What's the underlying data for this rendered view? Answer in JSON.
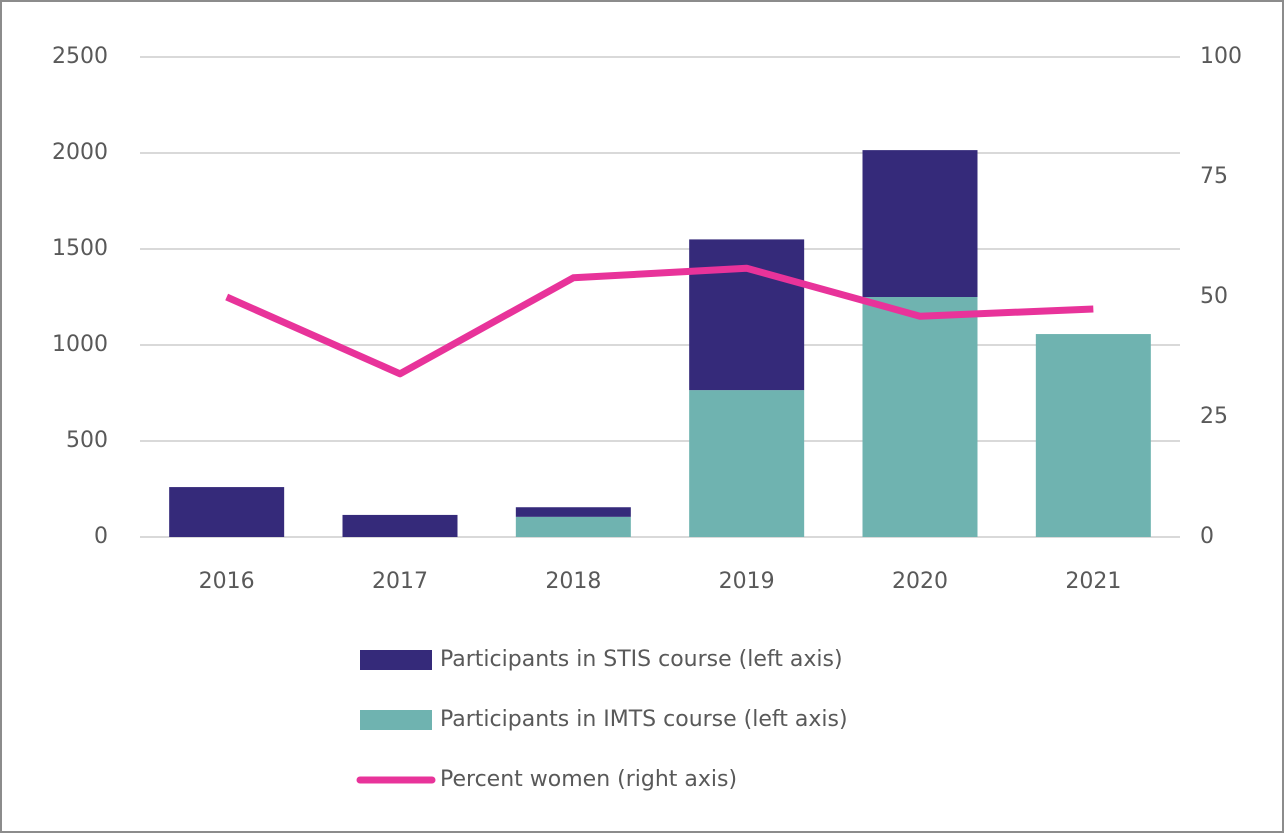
{
  "chart_data": {
    "type": "bar",
    "categories": [
      "2016",
      "2017",
      "2018",
      "2019",
      "2020",
      "2021"
    ],
    "series": [
      {
        "name": "Participants in STIS course (left axis)",
        "type": "bar",
        "color": "#352a7a",
        "values": [
          260,
          115,
          50,
          785,
          765,
          0
        ]
      },
      {
        "name": "Participants in IMTS course (left axis)",
        "type": "bar",
        "color": "#6fb3b0",
        "values": [
          0,
          0,
          105,
          765,
          1250,
          1057
        ]
      },
      {
        "name": "Percent women  (right axis)",
        "type": "line",
        "axis": "y2",
        "color": "#e8339a",
        "values": [
          50,
          34,
          54,
          56,
          46,
          47.5
        ]
      }
    ],
    "ylim": [
      0,
      2500
    ],
    "yticks": [
      0,
      500,
      1000,
      1500,
      2000,
      2500
    ],
    "y2lim": [
      0,
      100
    ],
    "y2ticks": [
      0,
      25,
      50,
      75,
      100
    ],
    "grid": true,
    "stacked": true,
    "legend": "bottom"
  }
}
